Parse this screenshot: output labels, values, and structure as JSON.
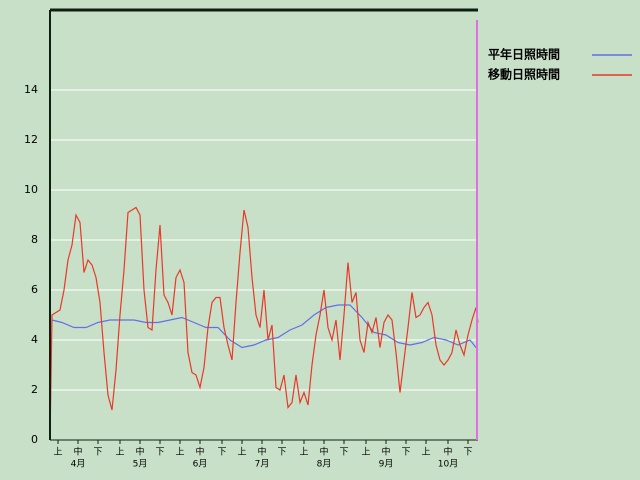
{
  "chart_data": {
    "type": "line",
    "xlim": [
      0,
      214
    ],
    "ylim": [
      0,
      17.2
    ],
    "yticks": [
      0,
      2,
      4,
      6,
      8,
      10,
      12,
      14
    ],
    "grid": true,
    "xticks": [
      {
        "value": 4,
        "label": "上"
      },
      {
        "value": 14,
        "label": "中"
      },
      {
        "value": 24,
        "label": "下"
      },
      {
        "value": 35,
        "label": "上"
      },
      {
        "value": 45,
        "label": "中"
      },
      {
        "value": 55,
        "label": "下"
      },
      {
        "value": 65,
        "label": "上"
      },
      {
        "value": 75,
        "label": "中"
      },
      {
        "value": 86,
        "label": "下"
      },
      {
        "value": 96,
        "label": "上"
      },
      {
        "value": 106,
        "label": "中"
      },
      {
        "value": 116,
        "label": "下"
      },
      {
        "value": 127,
        "label": "上"
      },
      {
        "value": 137,
        "label": "中"
      },
      {
        "value": 147,
        "label": "下"
      },
      {
        "value": 158,
        "label": "上"
      },
      {
        "value": 168,
        "label": "中"
      },
      {
        "value": 178,
        "label": "下"
      },
      {
        "value": 188,
        "label": "上"
      },
      {
        "value": 199,
        "label": "中"
      },
      {
        "value": 209,
        "label": "下"
      }
    ],
    "month_labels": [
      {
        "value": 14,
        "label": "4月"
      },
      {
        "value": 45,
        "label": "5月"
      },
      {
        "value": 75,
        "label": "6月"
      },
      {
        "value": 106,
        "label": "7月"
      },
      {
        "value": 137,
        "label": "8月"
      },
      {
        "value": 168,
        "label": "9月"
      },
      {
        "value": 199,
        "label": "10月"
      }
    ],
    "series": [
      {
        "name": "平年日照時間",
        "color": "#6070e8",
        "x": [
          1,
          6,
          12,
          18,
          24,
          30,
          36,
          42,
          48,
          54,
          60,
          66,
          72,
          78,
          84,
          90,
          96,
          102,
          108,
          114,
          120,
          126,
          132,
          138,
          144,
          150,
          156,
          162,
          168,
          174,
          180,
          186,
          192,
          198,
          204,
          210,
          214
        ],
        "values": [
          4.8,
          4.7,
          4.5,
          4.5,
          4.7,
          4.8,
          4.8,
          4.8,
          4.7,
          4.7,
          4.8,
          4.9,
          4.7,
          4.5,
          4.5,
          4.0,
          3.7,
          3.8,
          4.0,
          4.1,
          4.4,
          4.6,
          5.0,
          5.3,
          5.4,
          5.4,
          4.9,
          4.3,
          4.2,
          3.9,
          3.8,
          3.9,
          4.1,
          4.0,
          3.8,
          4.0,
          3.6
        ]
      },
      {
        "name": "移動日照時間",
        "color": "#e83828",
        "x": [
          0,
          1,
          3,
          5,
          7,
          9,
          11,
          13,
          15,
          17,
          19,
          21,
          23,
          25,
          27,
          29,
          31,
          33,
          35,
          37,
          39,
          41,
          43,
          45,
          47,
          49,
          51,
          53,
          55,
          57,
          59,
          61,
          63,
          65,
          67,
          69,
          71,
          73,
          75,
          77,
          79,
          81,
          83,
          85,
          87,
          89,
          91,
          93,
          95,
          97,
          99,
          101,
          103,
          105,
          107,
          109,
          111,
          113,
          115,
          117,
          119,
          121,
          123,
          125,
          127,
          129,
          131,
          133,
          135,
          137,
          139,
          141,
          143,
          145,
          147,
          149,
          151,
          153,
          155,
          157,
          159,
          161,
          163,
          165,
          167,
          169,
          171,
          173,
          175,
          177,
          179,
          181,
          183,
          185,
          187,
          189,
          191,
          193,
          195,
          197,
          199,
          201,
          203,
          205,
          207,
          209,
          211,
          213,
          214
        ],
        "values": [
          0,
          5.0,
          5.1,
          5.2,
          6.0,
          7.2,
          7.8,
          9.0,
          8.7,
          6.7,
          7.2,
          7.0,
          6.5,
          5.5,
          3.5,
          1.8,
          1.2,
          2.8,
          5.0,
          6.8,
          9.1,
          9.2,
          9.3,
          9.0,
          6.0,
          4.5,
          4.4,
          6.8,
          8.6,
          5.8,
          5.5,
          5.0,
          6.5,
          6.8,
          6.3,
          3.5,
          2.7,
          2.6,
          2.1,
          2.9,
          4.5,
          5.5,
          5.7,
          5.7,
          4.5,
          3.8,
          3.2,
          5.5,
          7.5,
          9.2,
          8.5,
          6.5,
          5.0,
          4.5,
          6.0,
          4.0,
          4.6,
          2.1,
          2.0,
          2.6,
          1.3,
          1.5,
          2.6,
          1.5,
          1.9,
          1.4,
          3.0,
          4.2,
          5.0,
          6.0,
          4.5,
          4.0,
          4.8,
          3.2,
          5.0,
          7.1,
          5.5,
          5.9,
          4.0,
          3.5,
          4.7,
          4.3,
          4.9,
          3.7,
          4.7,
          5.0,
          4.8,
          3.5,
          1.9,
          3.2,
          4.5,
          5.9,
          4.9,
          5.0,
          5.3,
          5.5,
          5.0,
          3.8,
          3.2,
          3.0,
          3.2,
          3.5,
          4.4,
          3.8,
          3.4,
          4.2,
          4.8,
          5.3,
          4.7
        ]
      }
    ]
  }
}
